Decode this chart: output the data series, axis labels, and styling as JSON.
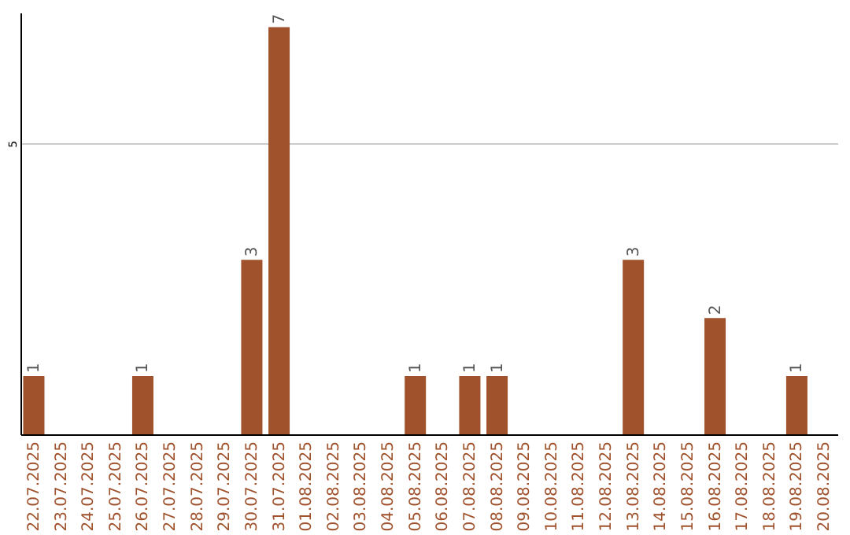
{
  "chart_data": {
    "type": "bar",
    "categories": [
      "22.07.2025",
      "23.07.2025",
      "24.07.2025",
      "25.07.2025",
      "26.07.2025",
      "27.07.2025",
      "28.07.2025",
      "29.07.2025",
      "30.07.2025",
      "31.07.2025",
      "01.08.2025",
      "02.08.2025",
      "03.08.2025",
      "04.08.2025",
      "05.08.2025",
      "06.08.2025",
      "07.08.2025",
      "08.08.2025",
      "09.08.2025",
      "10.08.2025",
      "11.08.2025",
      "12.08.2025",
      "13.08.2025",
      "14.08.2025",
      "15.08.2025",
      "16.08.2025",
      "17.08.2025",
      "18.08.2025",
      "19.08.2025",
      "20.08.2025"
    ],
    "values": [
      1,
      0,
      0,
      0,
      1,
      0,
      0,
      0,
      3,
      7,
      0,
      0,
      0,
      0,
      1,
      0,
      1,
      1,
      0,
      0,
      0,
      0,
      3,
      0,
      0,
      2,
      0,
      0,
      1,
      0
    ],
    "value_labels": [
      "1",
      null,
      null,
      null,
      "1",
      null,
      null,
      null,
      "3",
      "7",
      null,
      null,
      null,
      null,
      "1",
      null,
      "1",
      "1",
      null,
      null,
      null,
      null,
      "3",
      null,
      null,
      "2",
      null,
      null,
      "1",
      null
    ],
    "color": "#a0522d",
    "ylim": [
      0,
      7.25
    ],
    "yticks": [
      5
    ],
    "grid": "y"
  }
}
